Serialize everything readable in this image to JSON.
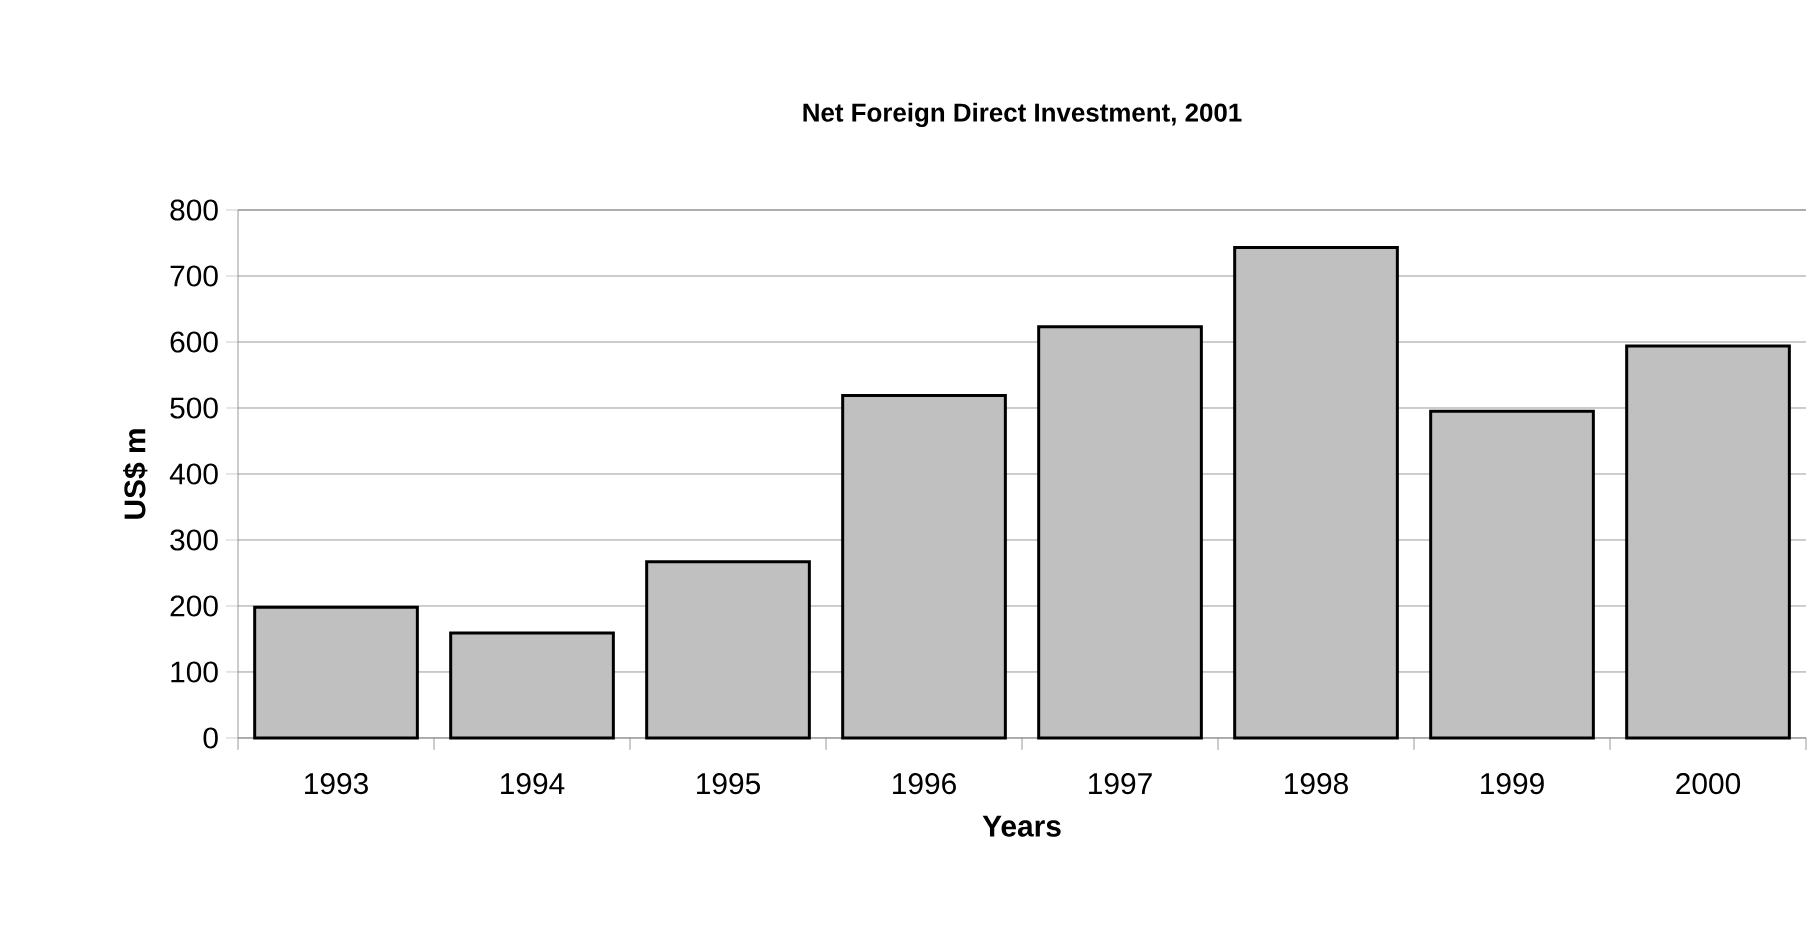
{
  "chart_data": {
    "type": "bar",
    "title": "Net Foreign Direct Investment, 2001",
    "xlabel": "Years",
    "ylabel": "US$ m",
    "categories": [
      "1993",
      "1994",
      "1995",
      "1996",
      "1997",
      "1998",
      "1999",
      "2000"
    ],
    "values": [
      198,
      159,
      267,
      519,
      623,
      743,
      495,
      594
    ],
    "color": "#c0c0c0",
    "ylim": [
      0,
      800
    ],
    "yticks": [
      0,
      100,
      200,
      300,
      400,
      500,
      600,
      700,
      800
    ],
    "grid": "y"
  }
}
